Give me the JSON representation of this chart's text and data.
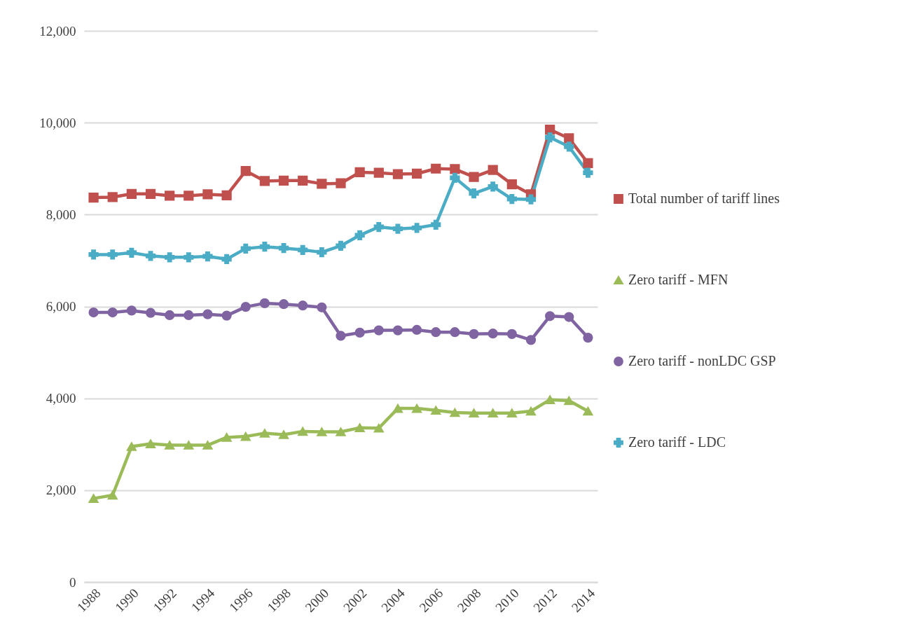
{
  "chart_data": {
    "type": "line",
    "categories": [
      "1988",
      null,
      "1990",
      null,
      "1992",
      null,
      "1994",
      null,
      "1996",
      null,
      "1998",
      null,
      "2000",
      null,
      "2002",
      null,
      "2004",
      null,
      "2006",
      null,
      "2008",
      null,
      "2010",
      null,
      "2012",
      null,
      "2014"
    ],
    "ylim": [
      0,
      12000
    ],
    "yticks": [
      0,
      {
        "value": 2000,
        "label": "2,000"
      },
      {
        "value": 4000,
        "label": "4,000"
      },
      {
        "value": 6000,
        "label": "6,000"
      },
      {
        "value": 8000,
        "label": "8,000"
      },
      {
        "value": 10000,
        "label": "10,000"
      },
      {
        "value": 12000,
        "label": "12,000"
      }
    ],
    "grid": "y",
    "legend": "right",
    "series": [
      {
        "name": "Total number of tariff lines",
        "color": "#c0504d",
        "marker": "square",
        "values": [
          8370,
          8380,
          8450,
          8450,
          8410,
          8410,
          8440,
          8420,
          8950,
          8730,
          8740,
          8740,
          8670,
          8680,
          8920,
          8910,
          8880,
          8890,
          9000,
          8990,
          8820,
          8970,
          8660,
          8440,
          9850,
          9660,
          9120
        ]
      },
      {
        "name": "Zero tariff - MFN",
        "color": "#9bbb59",
        "marker": "triangle",
        "values": [
          1820,
          1890,
          2950,
          3010,
          2980,
          2980,
          2980,
          3150,
          3170,
          3240,
          3210,
          3280,
          3270,
          3270,
          3360,
          3350,
          3780,
          3780,
          3740,
          3690,
          3680,
          3680,
          3680,
          3720,
          3970,
          3950,
          3720
        ]
      },
      {
        "name": "Zero tariff - nonLDC GSP",
        "color": "#8064a2",
        "marker": "circle",
        "values": [
          5870,
          5870,
          5910,
          5860,
          5810,
          5810,
          5830,
          5800,
          5990,
          6070,
          6050,
          6020,
          5980,
          5360,
          5430,
          5480,
          5480,
          5490,
          5440,
          5440,
          5400,
          5410,
          5400,
          5270,
          5790,
          5770,
          5320
        ]
      },
      {
        "name": "Zero tariff - LDC",
        "color": "#4bacc6",
        "marker": "cross",
        "values": [
          7130,
          7130,
          7170,
          7100,
          7070,
          7070,
          7090,
          7030,
          7260,
          7300,
          7270,
          7230,
          7180,
          7320,
          7550,
          7730,
          7690,
          7710,
          7780,
          8800,
          8460,
          8610,
          8340,
          8330,
          9680,
          9480,
          8910
        ]
      }
    ]
  }
}
